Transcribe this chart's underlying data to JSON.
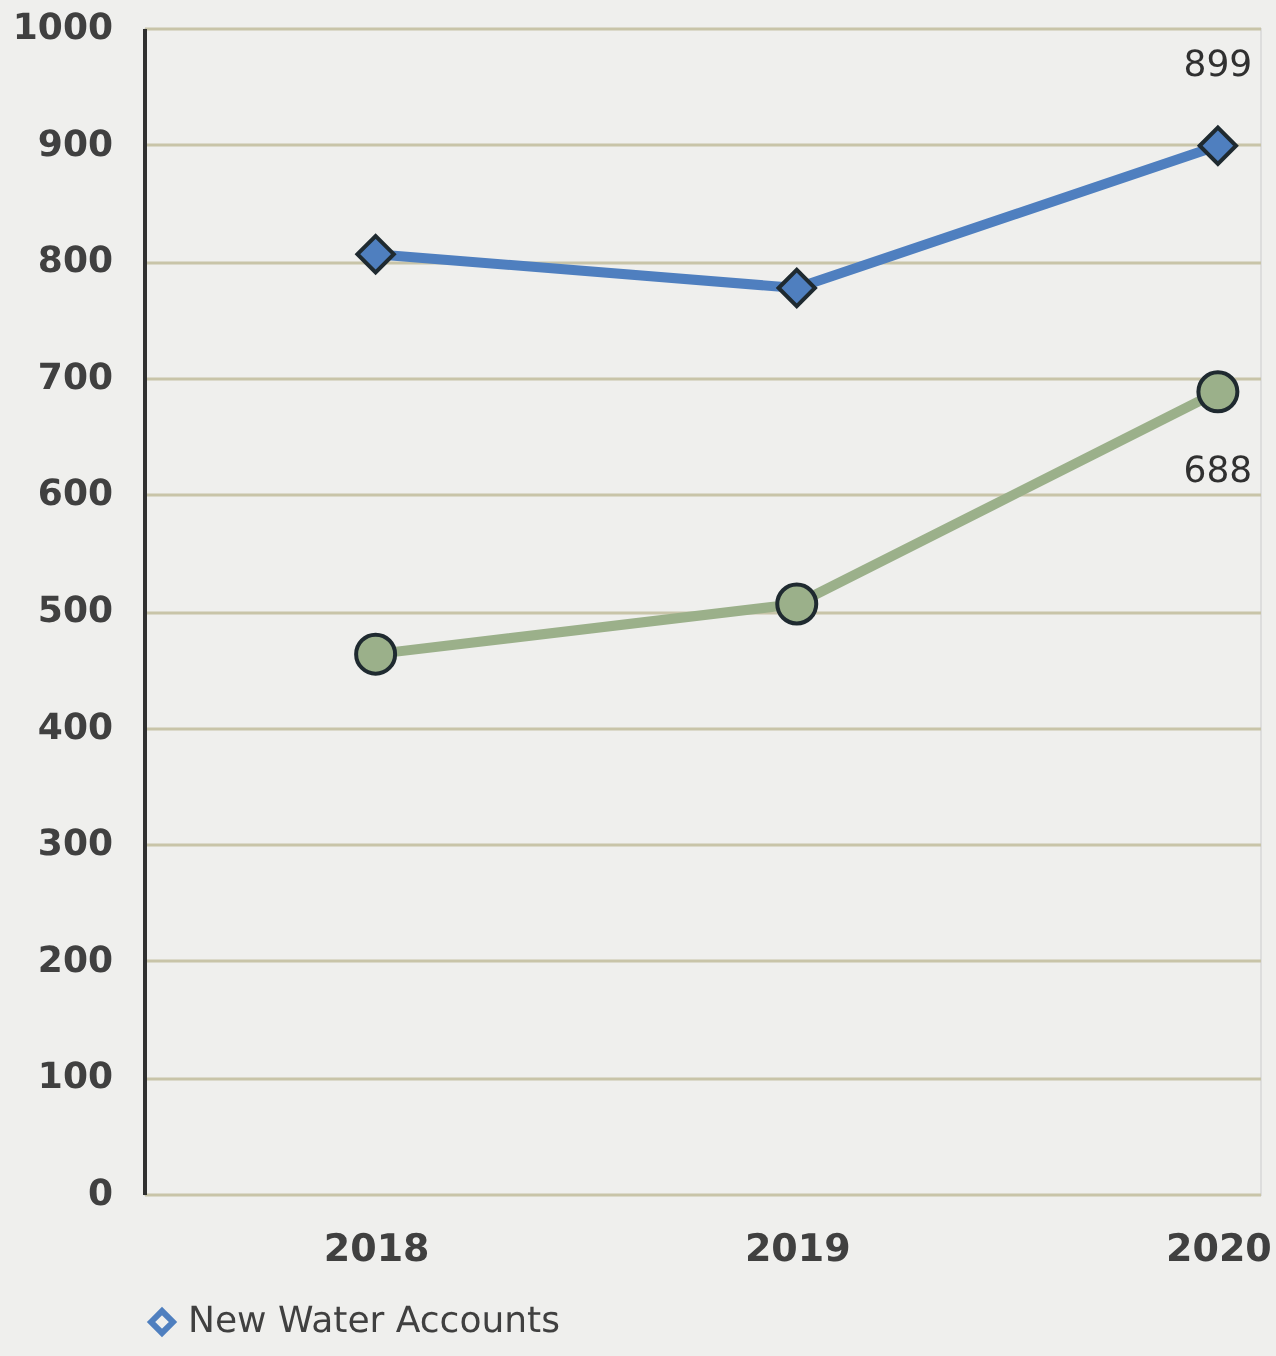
{
  "chart_data": {
    "type": "line",
    "categories": [
      "2018",
      "2019",
      "2020"
    ],
    "series": [
      {
        "name": "New Water Accounts",
        "color": "#4f7fbf",
        "marker": "diamond",
        "values": [
          806,
          777,
          899
        ],
        "value_labels": [
          null,
          null,
          "899"
        ]
      },
      {
        "color": "#9bb08a",
        "marker": "circle",
        "values": [
          463,
          506,
          688
        ],
        "value_labels": [
          null,
          null,
          "688"
        ]
      }
    ],
    "ylim": [
      0,
      1000
    ],
    "yticks": [
      0,
      100,
      200,
      300,
      400,
      500,
      600,
      700,
      800,
      900,
      1000
    ],
    "grid": "y",
    "legend": "bottom",
    "line_style": "solid"
  }
}
